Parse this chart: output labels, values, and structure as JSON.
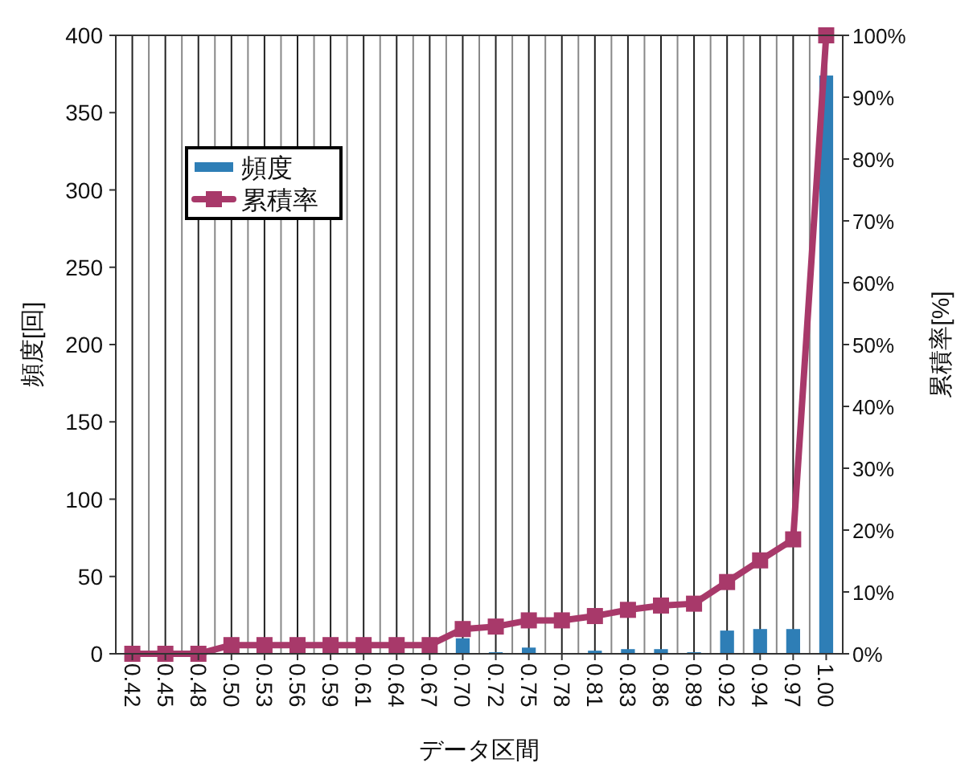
{
  "chart_data": {
    "type": "bar",
    "xlabel": "データ区間",
    "ylabel": "頻度[回]",
    "y2label": "累積率[%]",
    "categories": [
      "0.42",
      "0.45",
      "0.48",
      "0.50",
      "0.53",
      "0.56",
      "0.59",
      "0.61",
      "0.64",
      "0.67",
      "0.70",
      "0.72",
      "0.75",
      "0.78",
      "0.81",
      "0.83",
      "0.86",
      "0.89",
      "0.92",
      "0.94",
      "0.97",
      "1.00"
    ],
    "series": [
      {
        "name": "頻度",
        "color": "#2e7eb6",
        "values": [
          0,
          0,
          0,
          null,
          0,
          0,
          0,
          0,
          0,
          0,
          10,
          1,
          4,
          0,
          2,
          3,
          3,
          1,
          15,
          16,
          16,
          374
        ]
      },
      {
        "name": "累積率",
        "type": "line",
        "axis": "y2",
        "color": "#a8396a",
        "marker": "square",
        "values": [
          0,
          0,
          0,
          1.4,
          1.4,
          1.4,
          1.4,
          1.4,
          1.4,
          1.4,
          4.0,
          4.4,
          5.4,
          5.4,
          6.1,
          7.1,
          7.8,
          8.1,
          11.6,
          15.1,
          18.5,
          100
        ]
      }
    ],
    "ylim": [
      0,
      400
    ],
    "yticks": [
      0,
      50,
      100,
      150,
      200,
      250,
      300,
      350,
      400
    ],
    "y2lim": [
      0,
      100
    ],
    "y2ticks": [
      {
        "value": 0,
        "label": "0%"
      },
      {
        "value": 10,
        "label": "10%"
      },
      {
        "value": 20,
        "label": "20%"
      },
      {
        "value": 30,
        "label": "30%"
      },
      {
        "value": 40,
        "label": "40%"
      },
      {
        "value": 50,
        "label": "50%"
      },
      {
        "value": 60,
        "label": "60%"
      },
      {
        "value": 70,
        "label": "70%"
      },
      {
        "value": 80,
        "label": "80%"
      },
      {
        "value": 90,
        "label": "90%"
      },
      {
        "value": 100,
        "label": "100%"
      }
    ],
    "grid": "x",
    "legend": "left"
  }
}
